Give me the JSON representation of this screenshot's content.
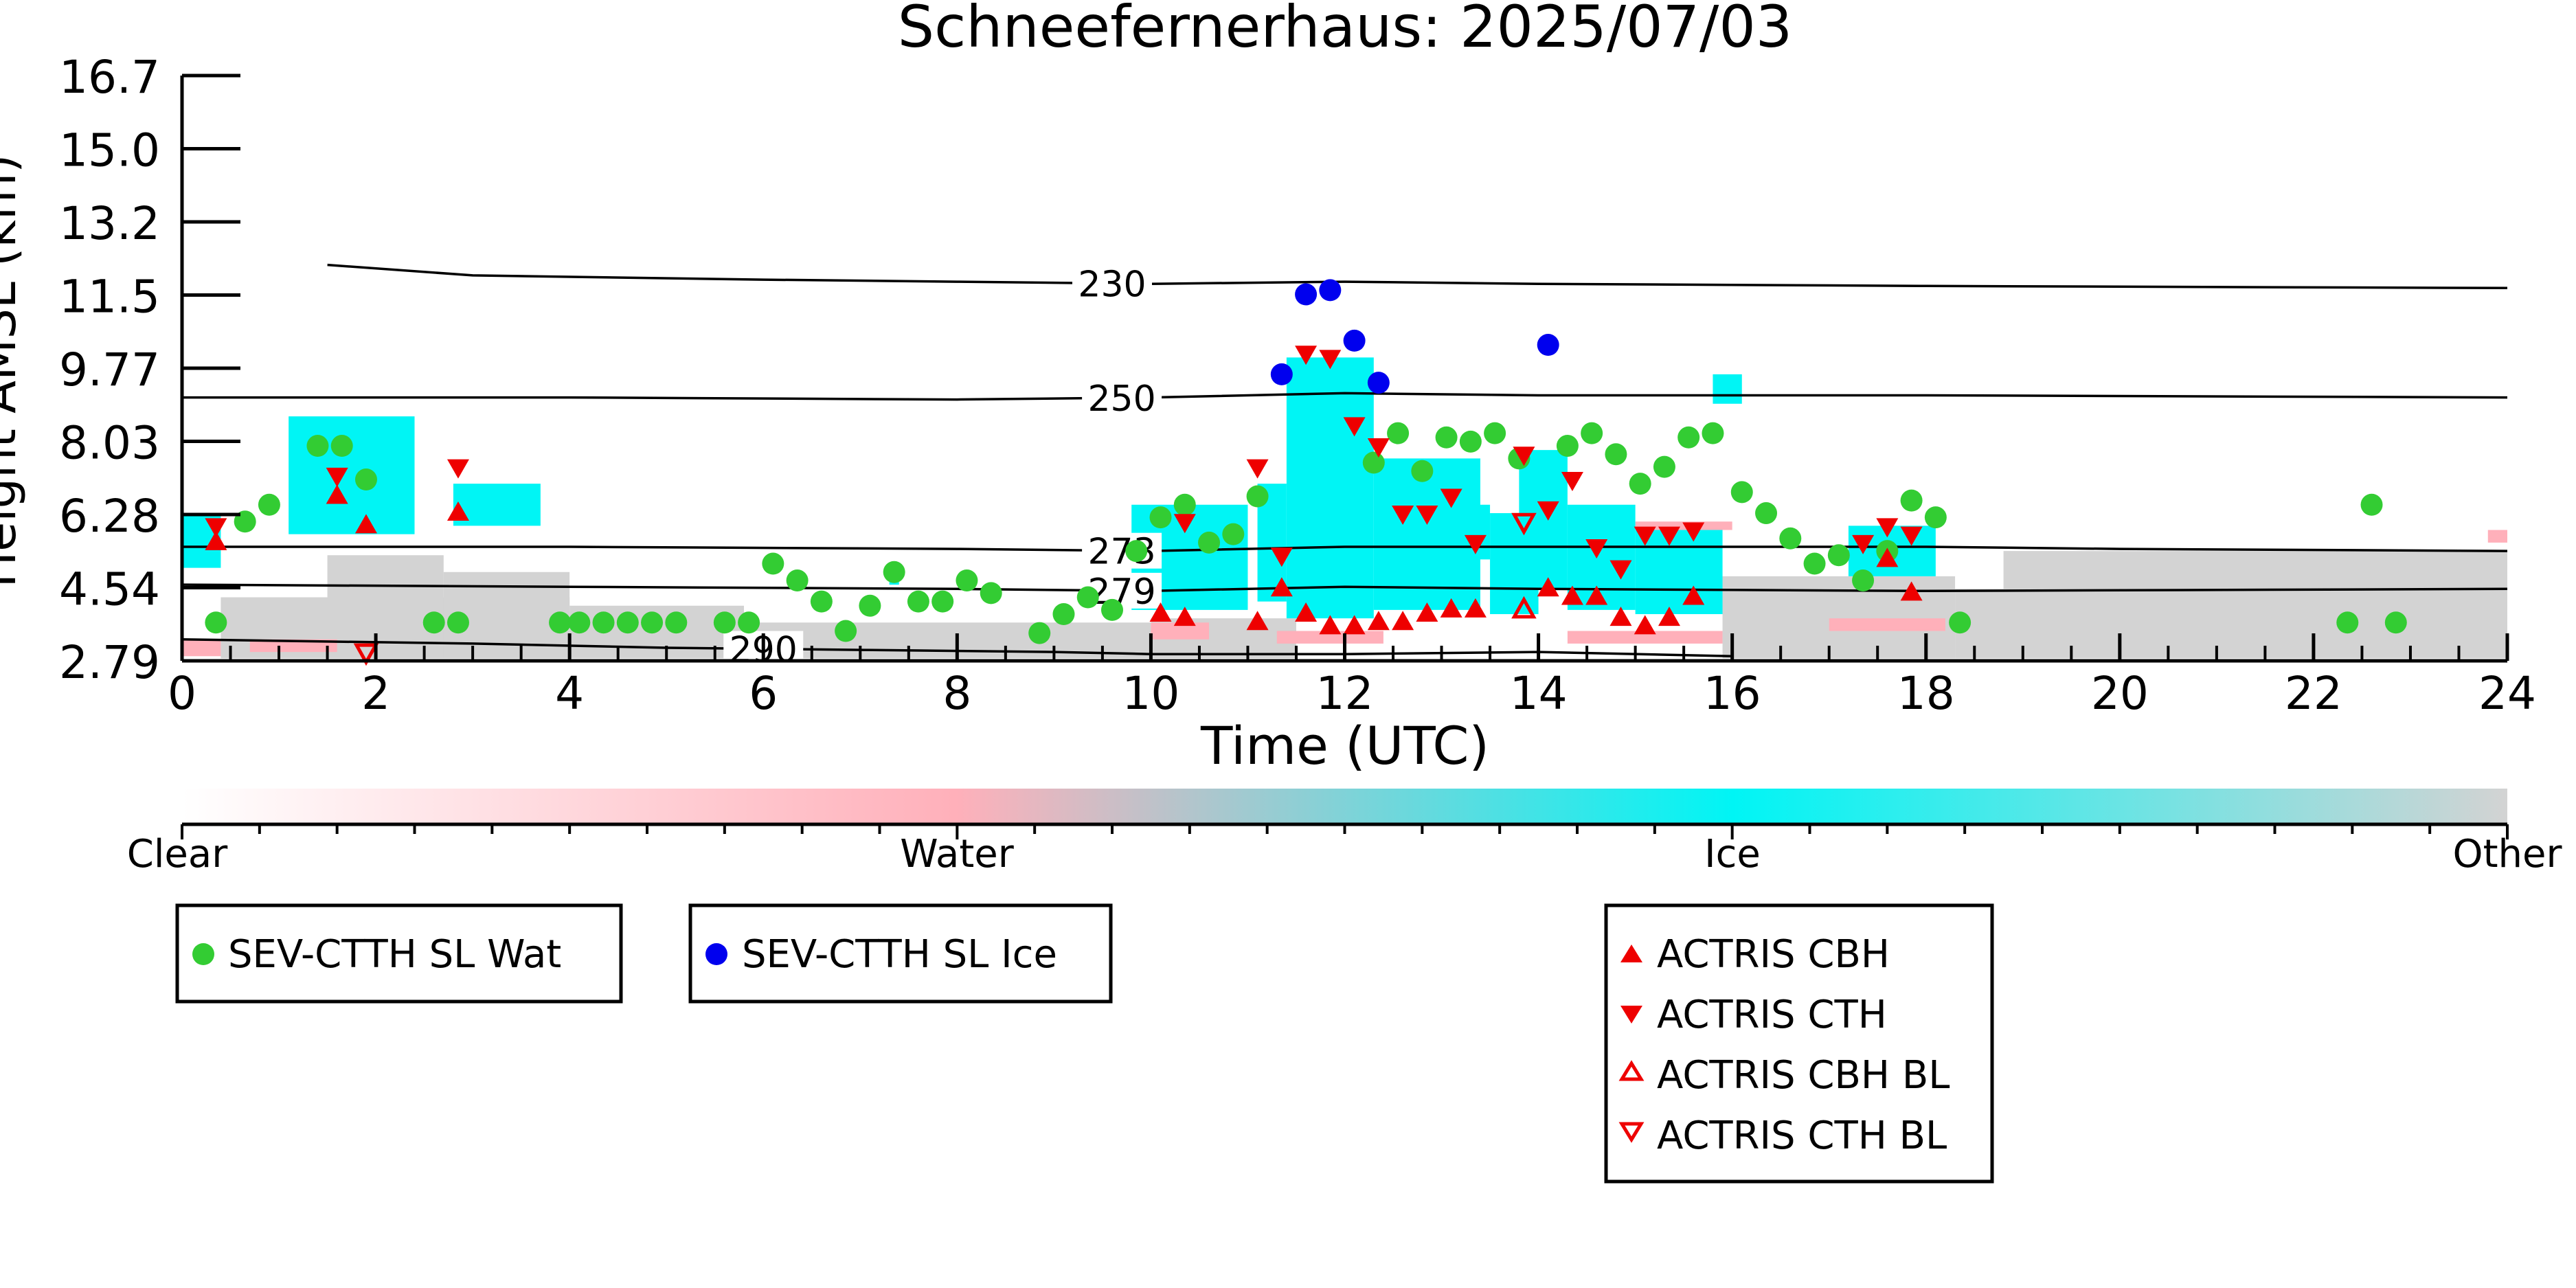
{
  "chart_data": {
    "type": "scatter",
    "title": "Schneefernerhaus: 2025/07/03",
    "xlabel": "Time (UTC)",
    "ylabel": "Height AMSL (km)",
    "xlim": [
      0,
      24
    ],
    "ylim": [
      2.79,
      16.7
    ],
    "x_ticks": [
      "0",
      "2",
      "4",
      "6",
      "8",
      "10",
      "12",
      "14",
      "16",
      "18",
      "20",
      "22",
      "24"
    ],
    "y_ticks": [
      "2.79",
      "4.54",
      "6.28",
      "8.03",
      "9.77",
      "11.5",
      "13.2",
      "15.0",
      "16.7"
    ],
    "contours": [
      {
        "label": "230",
        "label_x": 9.6,
        "points": [
          [
            1.5,
            12.2
          ],
          [
            3,
            11.95
          ],
          [
            6,
            11.85
          ],
          [
            8,
            11.8
          ],
          [
            10,
            11.75
          ],
          [
            12,
            11.8
          ],
          [
            14,
            11.75
          ],
          [
            18,
            11.7
          ],
          [
            24,
            11.65
          ]
        ]
      },
      {
        "label": "250",
        "label_x": 9.7,
        "points": [
          [
            0,
            9.05
          ],
          [
            4,
            9.05
          ],
          [
            8,
            9.0
          ],
          [
            10,
            9.05
          ],
          [
            12,
            9.15
          ],
          [
            14,
            9.1
          ],
          [
            18,
            9.1
          ],
          [
            24,
            9.05
          ]
        ]
      },
      {
        "label": "273",
        "label_x": 9.7,
        "points": [
          [
            0,
            5.5
          ],
          [
            4,
            5.5
          ],
          [
            8,
            5.45
          ],
          [
            10,
            5.4
          ],
          [
            12,
            5.5
          ],
          [
            14,
            5.5
          ],
          [
            18,
            5.5
          ],
          [
            20,
            5.45
          ],
          [
            24,
            5.4
          ]
        ]
      },
      {
        "label": "279",
        "label_x": 9.7,
        "points": [
          [
            0,
            4.6
          ],
          [
            4,
            4.55
          ],
          [
            8,
            4.5
          ],
          [
            10,
            4.45
          ],
          [
            12,
            4.55
          ],
          [
            14,
            4.5
          ],
          [
            18,
            4.45
          ],
          [
            24,
            4.5
          ]
        ]
      },
      {
        "label": "290",
        "label_x": 6.0,
        "points": [
          [
            0,
            3.3
          ],
          [
            3,
            3.2
          ],
          [
            5,
            3.1
          ],
          [
            7,
            3.05
          ],
          [
            9,
            3.0
          ],
          [
            10,
            2.95
          ],
          [
            12,
            2.95
          ],
          [
            14,
            3.0
          ],
          [
            16,
            2.9
          ]
        ]
      }
    ],
    "cloud_ice": [
      [
        0,
        5.0,
        0.4,
        6.3
      ],
      [
        1.1,
        5.8,
        2.4,
        8.6
      ],
      [
        2.8,
        6.0,
        3.7,
        7.0
      ],
      [
        7.3,
        4.6,
        7.4,
        5.0
      ],
      [
        9.8,
        4.0,
        11.0,
        6.5
      ],
      [
        11.1,
        4.2,
        11.4,
        7.0
      ],
      [
        11.4,
        3.8,
        12.3,
        10.0
      ],
      [
        12.3,
        4.0,
        13.4,
        7.6
      ],
      [
        12.9,
        5.2,
        13.5,
        6.5
      ],
      [
        13.5,
        3.9,
        14.0,
        6.3
      ],
      [
        13.8,
        4.5,
        14.3,
        7.8
      ],
      [
        14.3,
        4.0,
        15.0,
        6.5
      ],
      [
        15.0,
        3.9,
        15.9,
        5.9
      ],
      [
        15.8,
        8.9,
        16.1,
        9.6
      ],
      [
        17.2,
        4.8,
        18.1,
        6.0
      ]
    ],
    "cloud_water": [
      [
        0,
        2.9,
        0.4,
        3.3
      ],
      [
        0.7,
        3.0,
        1.6,
        3.3
      ],
      [
        10.0,
        3.3,
        10.6,
        3.7
      ],
      [
        11.3,
        3.2,
        12.4,
        3.5
      ],
      [
        14.3,
        3.2,
        15.9,
        3.5
      ],
      [
        15.0,
        5.9,
        16.0,
        6.1
      ],
      [
        17.0,
        3.5,
        18.2,
        3.8
      ],
      [
        23.8,
        5.6,
        24.0,
        5.9
      ]
    ],
    "cloud_other": [
      [
        0.4,
        2.85,
        4.0,
        4.3
      ],
      [
        1.5,
        2.85,
        2.7,
        5.3
      ],
      [
        2.7,
        2.85,
        4.0,
        4.9
      ],
      [
        4.0,
        2.85,
        5.8,
        4.1
      ],
      [
        5.8,
        2.85,
        10.0,
        3.7
      ],
      [
        10.0,
        2.85,
        11.5,
        3.8
      ],
      [
        15.9,
        2.85,
        18.3,
        4.8
      ],
      [
        18.3,
        2.85,
        24.0,
        4.5
      ],
      [
        18.8,
        4.4,
        24.0,
        5.4
      ]
    ],
    "series": [
      {
        "name": "SEV-CTTH SL Wat",
        "marker": "circle",
        "color": "#33cc33",
        "points": [
          [
            0.35,
            3.7
          ],
          [
            0.65,
            6.1
          ],
          [
            0.9,
            6.5
          ],
          [
            1.4,
            7.9
          ],
          [
            1.65,
            7.9
          ],
          [
            1.9,
            7.1
          ],
          [
            2.6,
            3.7
          ],
          [
            2.85,
            3.7
          ],
          [
            3.9,
            3.7
          ],
          [
            4.1,
            3.7
          ],
          [
            4.35,
            3.7
          ],
          [
            4.6,
            3.7
          ],
          [
            4.85,
            3.7
          ],
          [
            5.1,
            3.7
          ],
          [
            5.6,
            3.7
          ],
          [
            5.85,
            3.7
          ],
          [
            6.1,
            5.1
          ],
          [
            6.35,
            4.7
          ],
          [
            6.6,
            4.2
          ],
          [
            6.85,
            3.5
          ],
          [
            7.1,
            4.1
          ],
          [
            7.35,
            4.9
          ],
          [
            7.6,
            4.2
          ],
          [
            7.85,
            4.2
          ],
          [
            8.1,
            4.7
          ],
          [
            8.35,
            4.4
          ],
          [
            8.85,
            3.45
          ],
          [
            9.1,
            3.9
          ],
          [
            9.35,
            4.3
          ],
          [
            9.6,
            4.0
          ],
          [
            9.85,
            5.4
          ],
          [
            10.1,
            6.2
          ],
          [
            10.35,
            6.5
          ],
          [
            10.6,
            5.6
          ],
          [
            10.85,
            5.8
          ],
          [
            11.1,
            6.7
          ],
          [
            12.3,
            7.5
          ],
          [
            12.55,
            8.2
          ],
          [
            12.8,
            7.3
          ],
          [
            13.05,
            8.1
          ],
          [
            13.3,
            8.0
          ],
          [
            13.55,
            8.2
          ],
          [
            13.8,
            7.6
          ],
          [
            14.3,
            7.9
          ],
          [
            14.55,
            8.2
          ],
          [
            14.8,
            7.7
          ],
          [
            15.05,
            7.0
          ],
          [
            15.3,
            7.4
          ],
          [
            15.55,
            8.1
          ],
          [
            15.8,
            8.2
          ],
          [
            16.1,
            6.8
          ],
          [
            16.35,
            6.3
          ],
          [
            16.6,
            5.7
          ],
          [
            16.85,
            5.1
          ],
          [
            17.1,
            5.3
          ],
          [
            17.35,
            4.7
          ],
          [
            17.6,
            5.4
          ],
          [
            17.85,
            6.6
          ],
          [
            18.1,
            6.2
          ],
          [
            18.35,
            3.7
          ],
          [
            22.35,
            3.7
          ],
          [
            22.6,
            6.5
          ],
          [
            22.85,
            3.7
          ]
        ]
      },
      {
        "name": "SEV-CTTH SL Ice",
        "marker": "circle",
        "color": "#0000ee",
        "points": [
          [
            11.35,
            9.6
          ],
          [
            11.6,
            11.5
          ],
          [
            11.85,
            11.6
          ],
          [
            12.1,
            10.4
          ],
          [
            12.35,
            9.4
          ],
          [
            14.1,
            10.3
          ]
        ]
      },
      {
        "name": "ACTRIS CBH",
        "marker": "triangle-up",
        "color": "#ee0000",
        "points": [
          [
            0.35,
            5.6
          ],
          [
            1.6,
            6.7
          ],
          [
            1.9,
            6.0
          ],
          [
            2.85,
            6.3
          ],
          [
            10.1,
            3.9
          ],
          [
            10.35,
            3.8
          ],
          [
            11.1,
            3.7
          ],
          [
            11.35,
            4.5
          ],
          [
            11.6,
            3.9
          ],
          [
            11.85,
            3.6
          ],
          [
            12.1,
            3.6
          ],
          [
            12.35,
            3.7
          ],
          [
            12.6,
            3.7
          ],
          [
            12.85,
            3.9
          ],
          [
            13.1,
            4.0
          ],
          [
            13.35,
            4.0
          ],
          [
            14.1,
            4.5
          ],
          [
            14.35,
            4.3
          ],
          [
            14.6,
            4.3
          ],
          [
            14.85,
            3.8
          ],
          [
            15.1,
            3.6
          ],
          [
            15.35,
            3.8
          ],
          [
            15.6,
            4.3
          ],
          [
            17.6,
            5.2
          ],
          [
            17.85,
            4.4
          ]
        ]
      },
      {
        "name": "ACTRIS CTH",
        "marker": "triangle-down",
        "color": "#ee0000",
        "points": [
          [
            0.35,
            6.0
          ],
          [
            1.6,
            7.2
          ],
          [
            2.85,
            7.4
          ],
          [
            10.35,
            6.1
          ],
          [
            11.1,
            7.4
          ],
          [
            11.35,
            5.3
          ],
          [
            11.6,
            10.1
          ],
          [
            11.85,
            10.0
          ],
          [
            12.1,
            8.4
          ],
          [
            12.35,
            7.9
          ],
          [
            12.6,
            6.3
          ],
          [
            12.85,
            6.3
          ],
          [
            13.1,
            6.7
          ],
          [
            13.35,
            5.6
          ],
          [
            13.85,
            7.7
          ],
          [
            14.1,
            6.4
          ],
          [
            14.35,
            7.1
          ],
          [
            14.6,
            5.5
          ],
          [
            14.85,
            5.0
          ],
          [
            15.1,
            5.8
          ],
          [
            15.35,
            5.8
          ],
          [
            15.6,
            5.9
          ],
          [
            17.35,
            5.6
          ],
          [
            17.6,
            6.0
          ],
          [
            17.85,
            5.8
          ]
        ]
      },
      {
        "name": "ACTRIS CBH BL",
        "marker": "triangle-up-open",
        "color": "#ee0000",
        "points": [
          [
            13.85,
            4.0
          ]
        ]
      },
      {
        "name": "ACTRIS CTH BL",
        "marker": "triangle-down-open",
        "color": "#ee0000",
        "points": [
          [
            1.9,
            3.0
          ],
          [
            13.85,
            6.1
          ]
        ]
      }
    ],
    "colorbar": {
      "labels": [
        "Clear",
        "Water",
        "Ice",
        "Other"
      ],
      "colors": [
        "#ffffff",
        "#ffb0ba",
        "#00f5f5",
        "#d3d3d3"
      ]
    },
    "legend_groups": [
      [
        "SEV-CTTH SL Wat"
      ],
      [
        "SEV-CTTH SL Ice"
      ],
      [
        "ACTRIS CBH",
        "ACTRIS CTH",
        "ACTRIS CBH BL",
        "ACTRIS CTH BL"
      ]
    ]
  }
}
